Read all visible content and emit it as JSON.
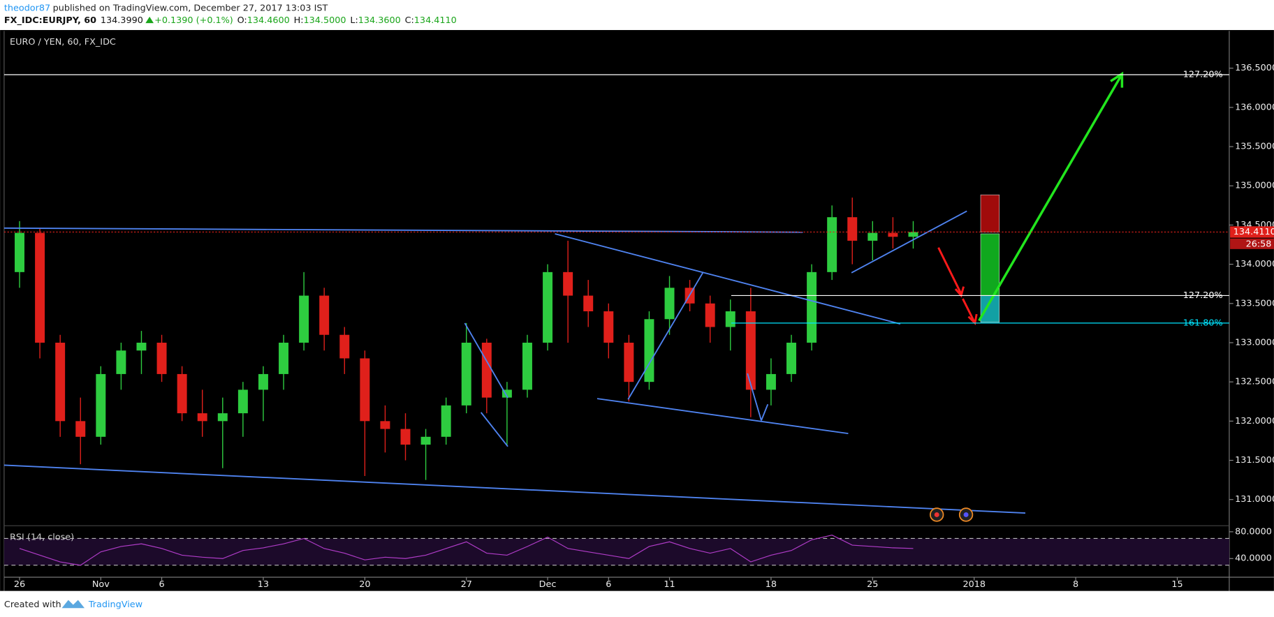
{
  "header": {
    "author": "theodor87",
    "published": "published on TradingView.com, December 27, 2017 13:03 IST",
    "symbol": "FX_IDC:EURJPY, 60",
    "price": "134.3990",
    "change": "+0.1390 (+0.1%)",
    "ohlc": [
      {
        "label": "O:",
        "value": "134.4600"
      },
      {
        "label": "H:",
        "value": "134.5000"
      },
      {
        "label": "L:",
        "value": "134.3600"
      },
      {
        "label": "C:",
        "value": "134.4110"
      }
    ]
  },
  "footer": {
    "created": "Created with",
    "brand": "TradingView"
  },
  "chart_data": {
    "type": "candlestick",
    "title": "EURO / YEN, 60, FX_IDC",
    "up_color": "#2ecc40",
    "down_color": "#e0201b",
    "x": [
      0,
      1,
      2,
      3,
      4,
      5,
      6,
      7,
      8,
      9,
      10,
      11,
      12,
      13,
      14,
      15,
      16,
      17,
      18,
      19,
      20,
      21,
      22,
      23,
      24,
      25,
      26,
      27,
      28,
      29,
      30,
      31,
      32,
      33,
      34,
      35,
      36,
      37,
      38,
      39,
      40,
      41,
      42,
      43,
      44
    ],
    "open": [
      133.9,
      134.4,
      133.0,
      132.0,
      131.8,
      132.6,
      132.9,
      133.0,
      132.6,
      132.1,
      132.0,
      132.1,
      132.4,
      132.6,
      133.0,
      133.6,
      133.1,
      132.8,
      132.0,
      131.9,
      131.7,
      131.8,
      132.2,
      133.0,
      132.3,
      132.4,
      133.0,
      133.9,
      133.6,
      133.4,
      133.0,
      132.5,
      133.3,
      133.7,
      133.5,
      133.2,
      133.4,
      132.4,
      132.6,
      133.0,
      133.9,
      134.6,
      134.3,
      134.4,
      134.35
    ],
    "high": [
      134.55,
      134.45,
      133.1,
      132.3,
      132.7,
      133.0,
      133.15,
      133.1,
      132.7,
      132.4,
      132.3,
      132.5,
      132.7,
      133.1,
      133.9,
      133.7,
      133.2,
      132.9,
      132.2,
      132.1,
      131.9,
      132.3,
      133.25,
      133.05,
      132.5,
      133.1,
      134.0,
      134.3,
      133.8,
      133.5,
      133.1,
      133.4,
      133.85,
      133.8,
      133.6,
      133.55,
      133.7,
      132.8,
      133.1,
      134.0,
      134.75,
      134.85,
      134.55,
      134.6,
      134.55
    ],
    "low": [
      133.7,
      132.8,
      131.8,
      131.45,
      131.7,
      132.4,
      132.6,
      132.5,
      132.0,
      131.8,
      131.4,
      131.8,
      132.0,
      132.4,
      132.9,
      132.9,
      132.6,
      131.3,
      131.6,
      131.5,
      131.25,
      131.7,
      132.1,
      132.1,
      131.7,
      132.3,
      132.9,
      133.0,
      133.2,
      132.8,
      132.25,
      132.4,
      133.1,
      133.4,
      133.0,
      132.9,
      132.05,
      132.2,
      132.5,
      132.9,
      133.8,
      134.0,
      134.05,
      134.2,
      134.2
    ],
    "close": [
      134.4,
      133.0,
      132.0,
      131.8,
      132.6,
      132.9,
      133.0,
      132.6,
      132.1,
      132.0,
      132.1,
      132.4,
      132.6,
      133.0,
      133.6,
      133.1,
      132.8,
      132.0,
      131.9,
      131.7,
      131.8,
      132.2,
      133.0,
      132.3,
      132.4,
      133.0,
      133.9,
      133.6,
      133.4,
      133.0,
      132.5,
      133.3,
      133.7,
      133.5,
      133.2,
      133.4,
      132.4,
      132.6,
      133.0,
      133.9,
      134.6,
      134.3,
      134.4,
      134.35,
      134.41
    ],
    "xlim": [
      -0.76,
      59.56
    ],
    "xticks": [
      {
        "value": 0,
        "label": "26"
      },
      {
        "value": 4,
        "label": "Nov"
      },
      {
        "value": 7,
        "label": "6"
      },
      {
        "value": 12,
        "label": "13"
      },
      {
        "value": 17,
        "label": "20"
      },
      {
        "value": 22,
        "label": "27"
      },
      {
        "value": 26,
        "label": "Dec"
      },
      {
        "value": 29,
        "label": "6"
      },
      {
        "value": 32,
        "label": "11"
      },
      {
        "value": 37,
        "label": "18"
      },
      {
        "value": 42,
        "label": "25"
      },
      {
        "value": 47,
        "label": "2018"
      },
      {
        "value": 52,
        "label": "8"
      },
      {
        "value": 57,
        "label": "15"
      }
    ],
    "ylim": [
      130.672,
      136.976
    ],
    "yticks": [
      {
        "value": 131.0,
        "label": "131.0000"
      },
      {
        "value": 131.5,
        "label": "131.5000"
      },
      {
        "value": 132.0,
        "label": "132.0000"
      },
      {
        "value": 132.5,
        "label": "132.5000"
      },
      {
        "value": 133.0,
        "label": "133.0000"
      },
      {
        "value": 133.5,
        "label": "133.5000"
      },
      {
        "value": 134.0,
        "label": "134.0000"
      },
      {
        "value": 134.5,
        "label": "134.5000"
      },
      {
        "value": 135.0,
        "label": "135.0000"
      },
      {
        "value": 135.5,
        "label": "135.5000"
      },
      {
        "value": 136.0,
        "label": "136.0000"
      },
      {
        "value": 136.5,
        "label": "136.5000"
      }
    ],
    "last_price": {
      "value": 134.411,
      "label": "134.4110",
      "countdown": "26:58",
      "color": "#e0201b"
    },
    "fib_levels": [
      {
        "value": 136.417,
        "label": "127.20%",
        "color": "#ffffff"
      },
      {
        "value": 133.601,
        "label": "127.20%",
        "color": "#ffffff"
      },
      {
        "value": 133.25,
        "label": "161.80%",
        "color": "#00e5ff"
      }
    ],
    "rsi": {
      "label": "RSI (14, close)",
      "color": "#b03cc8",
      "values": [
        55,
        45,
        35,
        30,
        50,
        58,
        62,
        55,
        45,
        42,
        40,
        52,
        56,
        62,
        70,
        55,
        48,
        38,
        42,
        40,
        45,
        55,
        65,
        48,
        45,
        58,
        72,
        55,
        50,
        45,
        40,
        58,
        65,
        55,
        48,
        55,
        35,
        45,
        52,
        68,
        75,
        60,
        58,
        56,
        55
      ],
      "ylim": [
        13.3,
        88.5
      ],
      "yticks": [
        {
          "value": 80,
          "label": "80.0000"
        },
        {
          "value": 40,
          "label": "40.0000"
        }
      ],
      "bands": [
        70,
        30
      ]
    }
  }
}
